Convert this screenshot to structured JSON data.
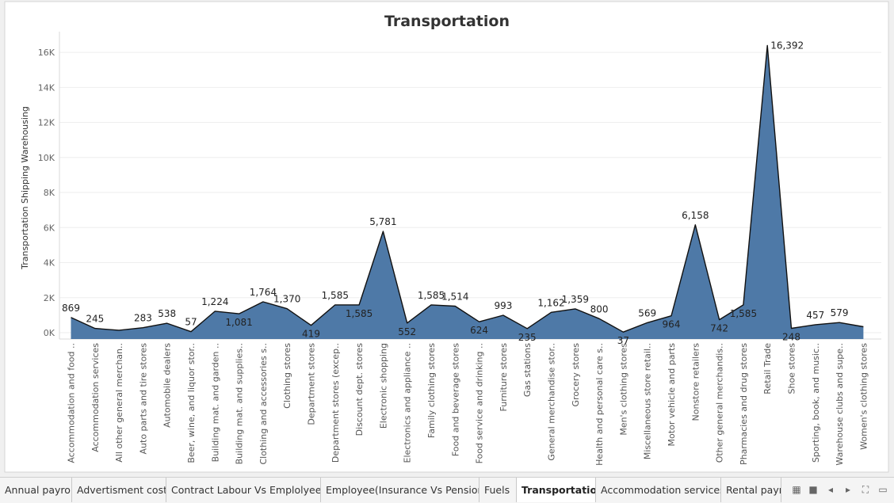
{
  "chart_data": {
    "type": "area",
    "title": "Transportation",
    "ylabel": "Transportation Shipping Warehousing",
    "xlabel": "",
    "ylim": [
      -300,
      16400
    ],
    "yticks": [
      {
        "value": 0,
        "label": "0K"
      },
      {
        "value": 2000,
        "label": "2K"
      },
      {
        "value": 4000,
        "label": "4K"
      },
      {
        "value": 6000,
        "label": "6K"
      },
      {
        "value": 8000,
        "label": "8K"
      },
      {
        "value": 10000,
        "label": "10K"
      },
      {
        "value": 12000,
        "label": "12K"
      },
      {
        "value": 14000,
        "label": "14K"
      },
      {
        "value": 16000,
        "label": "16K"
      }
    ],
    "grid": true,
    "fill_color": "#4e79a7",
    "categories": [
      "Accommodation and food ..",
      "Accommodation services",
      "All other general merchan..",
      "Auto parts and tire stores",
      "Automobile dealers",
      "Beer, wine, and liquor stor..",
      "Building mat. and garden ..",
      "Building mat. and supplies..",
      "Clothing and accessories s..",
      "Clothing stores",
      "Department stores",
      "Department stores (excep..",
      "Discount dept. stores",
      "Electronic shopping",
      "Electronics and appliance ..",
      "Family clothing stores",
      "Food and beverage stores",
      "Food service and drinking ..",
      "Furniture stores",
      "Gas stations",
      "General merchandise stor..",
      "Grocery stores",
      "Health and personal care s..",
      "Men's clothing stores",
      "Miscellaneous store retail..",
      "Motor vehicle and parts",
      "Nonstore retailers",
      "Other general merchandis..",
      "Pharmacies and drug stores",
      "Retail Trade",
      "Shoe stores",
      "Sporting, book, and music..",
      "Warehouse clubs and supe..",
      "Women's clothing stores"
    ],
    "values": [
      869,
      245,
      140,
      283,
      538,
      57,
      1224,
      1081,
      1764,
      1370,
      419,
      1585,
      1585,
      5781,
      552,
      1585,
      1514,
      624,
      993,
      235,
      1162,
      1359,
      800,
      37,
      569,
      964,
      6158,
      742,
      1585,
      16392,
      248,
      457,
      579,
      340
    ],
    "data_labels": [
      "869",
      "245",
      "",
      "283",
      "538",
      "57",
      "1,224",
      "1,081",
      "1,764",
      "1,370",
      "419",
      "1,585",
      "1,585",
      "5,781",
      "552",
      "1,585",
      "1,514",
      "624",
      "993",
      "235",
      "1,162",
      "1,359",
      "800",
      "37",
      "569",
      "964",
      "6,158",
      "742",
      "1,585",
      "16,392",
      "248",
      "457",
      "579",
      ""
    ],
    "label_position": [
      "above",
      "above",
      "",
      "above",
      "above",
      "above",
      "above",
      "below",
      "above",
      "above",
      "below",
      "above",
      "below",
      "above",
      "below",
      "above",
      "above",
      "below",
      "above",
      "below",
      "above",
      "above",
      "above",
      "below",
      "above",
      "below",
      "above",
      "below",
      "below",
      "right",
      "below",
      "above",
      "above",
      ""
    ]
  },
  "tabs": [
    {
      "label": "Annual payroll",
      "active": false
    },
    {
      "label": "Advertisment cost",
      "active": false
    },
    {
      "label": "Contract Labour Vs Emplolyees",
      "active": false
    },
    {
      "label": "Employee(Insurance Vs Pension)",
      "active": false
    },
    {
      "label": "Fuels",
      "active": false
    },
    {
      "label": "Transportation",
      "active": true
    },
    {
      "label": "Accommodation services",
      "active": false
    },
    {
      "label": "Rental paym",
      "active": false
    }
  ],
  "controls": [
    {
      "icon": "grid-view-icon",
      "glyph": "▦"
    },
    {
      "icon": "single-view-icon",
      "glyph": "■"
    },
    {
      "icon": "prev-sheet-icon",
      "glyph": "◂"
    },
    {
      "icon": "next-sheet-icon",
      "glyph": "▸"
    },
    {
      "icon": "fullscreen-icon",
      "glyph": "⛶"
    },
    {
      "icon": "present-icon",
      "glyph": "▭"
    }
  ]
}
